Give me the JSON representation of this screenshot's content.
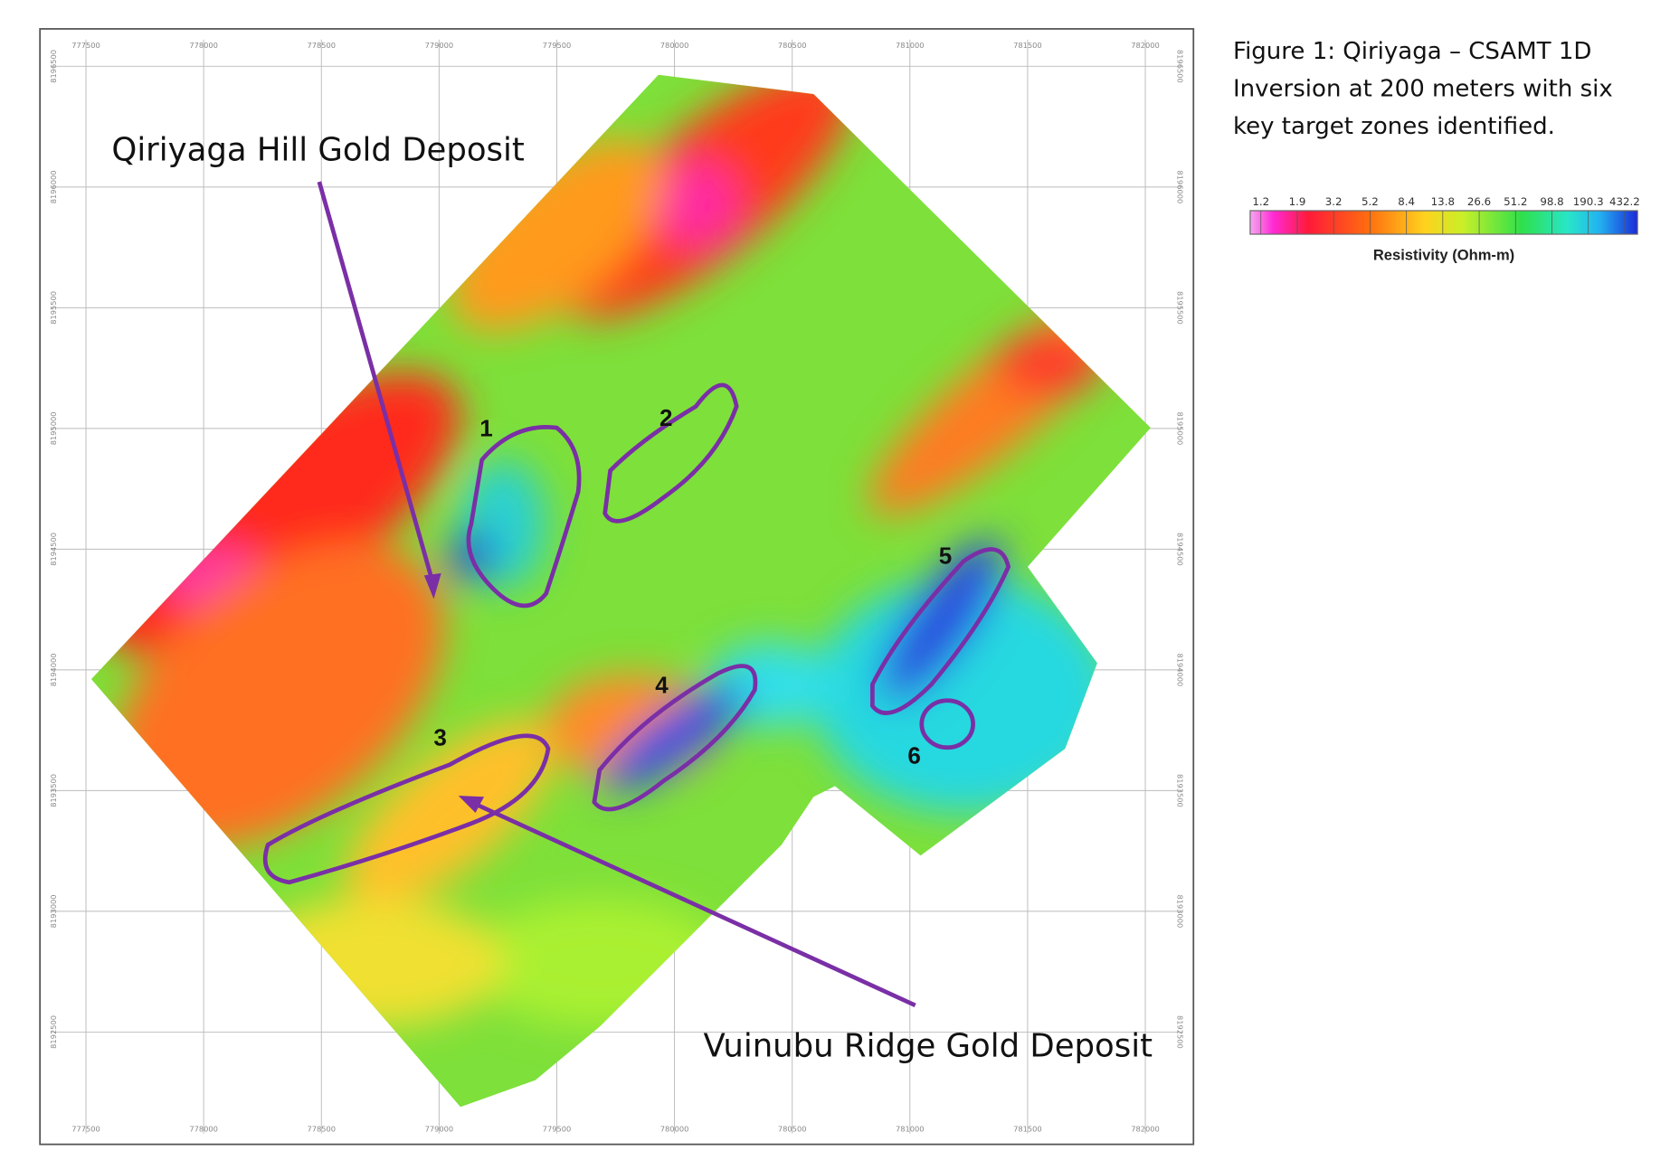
{
  "figure": {
    "caption_lines": [
      "Figure 1: Qiriyaga – CSAMT 1D",
      "Inversion at 200 meters with six",
      "key target zones identified."
    ]
  },
  "colorbar": {
    "ticks": [
      "1.2",
      "1.9",
      "3.2",
      "5.2",
      "8.4",
      "13.8",
      "26.6",
      "51.2",
      "98.8",
      "190.3",
      "432.2"
    ],
    "label": "Resistivity (Ohm-m)"
  },
  "map": {
    "easting_ticks": [
      777500,
      778000,
      778500,
      779000,
      779500,
      780000,
      780500,
      781000,
      781500,
      782000
    ],
    "northing_ticks": [
      8196500,
      8196000,
      8195500,
      8195000,
      8194500,
      8194000,
      8193500,
      8193000,
      8192500
    ],
    "annotations": [
      "Qiriyaga Hill Gold Deposit",
      "Vuinubu Ridge Gold Deposit"
    ],
    "zones": [
      "1",
      "2",
      "3",
      "4",
      "5",
      "6"
    ]
  }
}
